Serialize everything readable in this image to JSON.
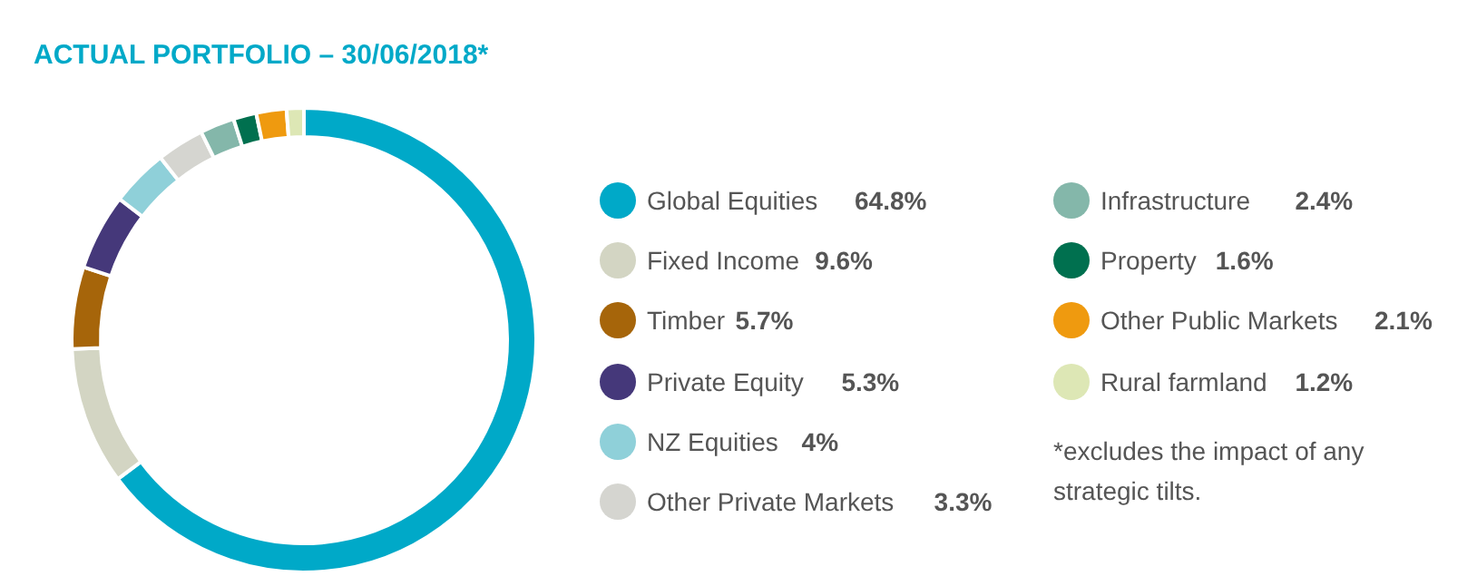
{
  "chart_data": {
    "type": "donut",
    "title": "ACTUAL PORTFOLIO – 30/06/2018*",
    "categories": [
      "Global Equities",
      "Fixed Income",
      "Timber",
      "Private Equity",
      "NZ Equities",
      "Other Private Markets",
      "Infrastructure",
      "Property",
      "Other Public Markets",
      "Rural farmland"
    ],
    "values": [
      64.8,
      9.6,
      5.7,
      5.3,
      4,
      3.3,
      2.4,
      1.6,
      2.1,
      1.2
    ],
    "value_labels": [
      "64.8%",
      "9.6%",
      "5.7%",
      "5.3%",
      "4%",
      "3.3%",
      "2.4%",
      "1.6%",
      "2.1%",
      "1.2%"
    ],
    "colors": [
      "#00a9c8",
      "#d3d5c3",
      "#a6650a",
      "#45387a",
      "#8fd0d9",
      "#d5d5d0",
      "#84b7aa",
      "#00704f",
      "#ef9a0f",
      "#dde7b5"
    ],
    "legend": "right",
    "annotations": [
      "*excludes the impact of any strategic tilts."
    ]
  }
}
